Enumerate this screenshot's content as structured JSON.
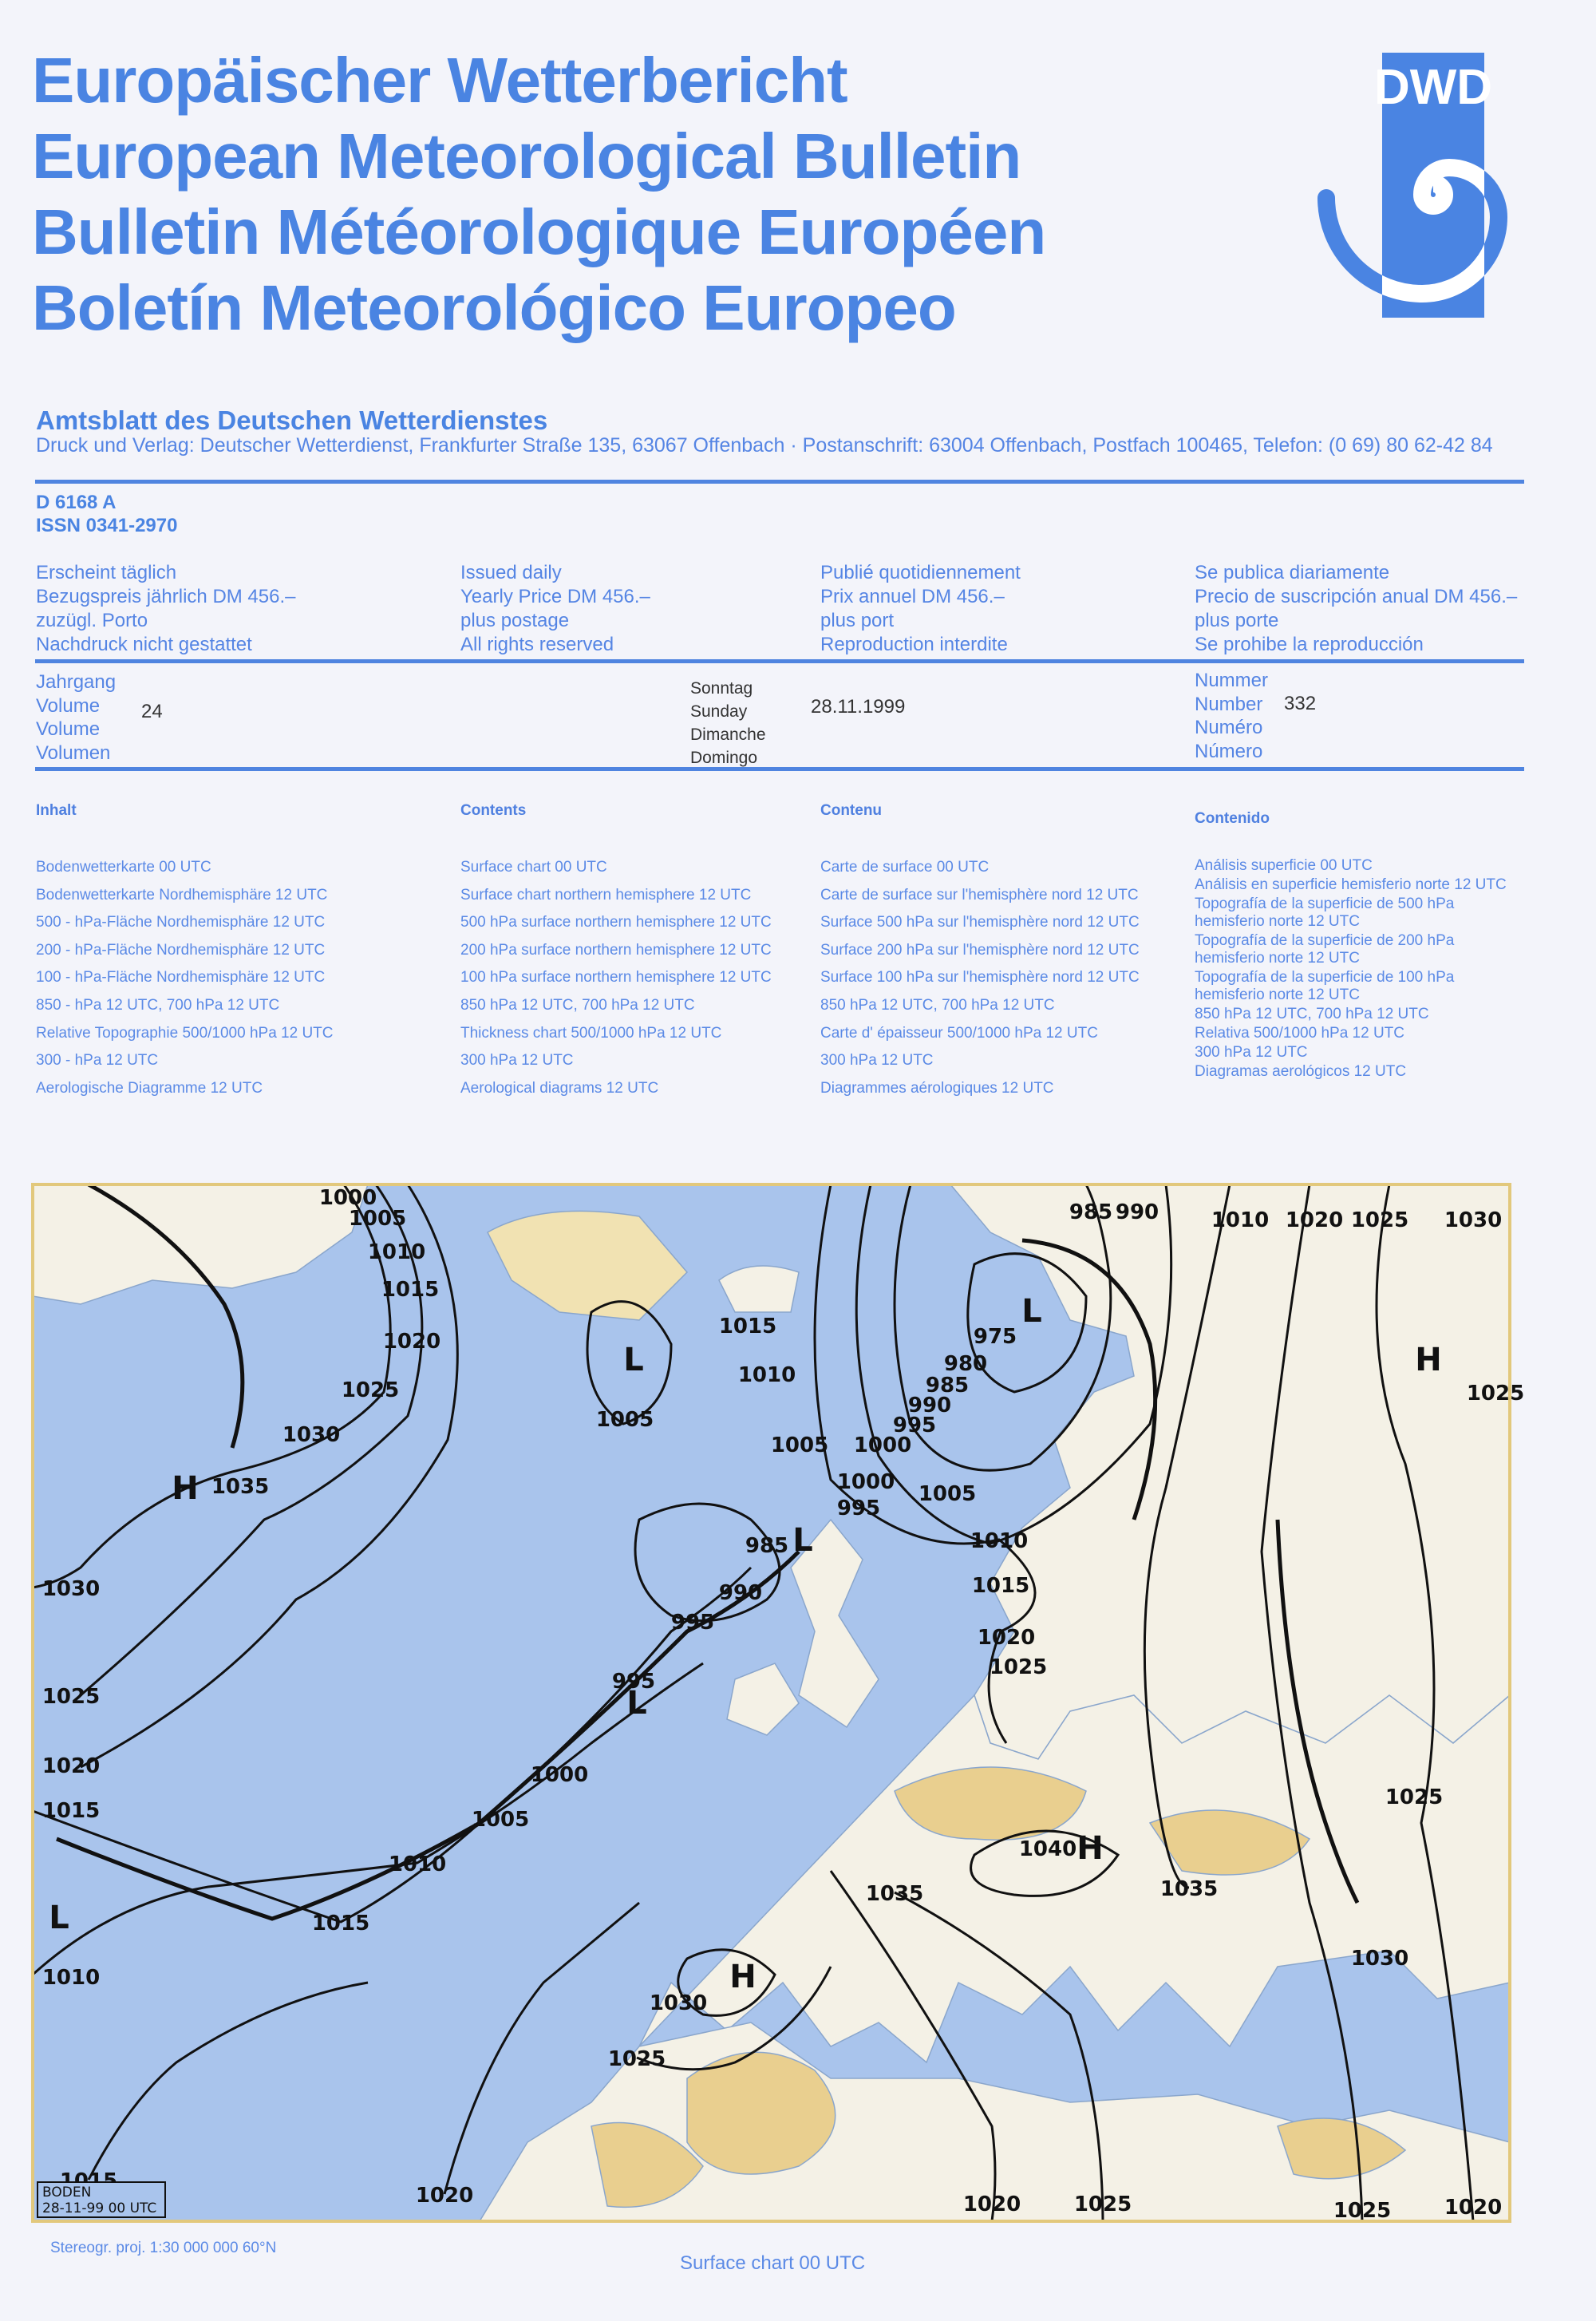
{
  "titles": [
    "Europäischer Wetterbericht",
    "European Meteorological Bulletin",
    "Bulletin Météorologique Européen",
    "Boletín Meteorológico Europeo"
  ],
  "logo": {
    "text": "DWD",
    "color": "#4a84e2"
  },
  "publisher": {
    "name": "Amtsblatt des Deutschen Wetterdienstes",
    "address": "Druck und Verlag: Deutscher Wetterdienst, Frankfurter Straße 135, 63067 Offenbach · Postanschrift: 63004 Offenbach, Postfach 100465, Telefon: (0 69) 80 62-42 84"
  },
  "ids": {
    "d_number": "D 6168 A",
    "issn": "ISSN 0341-2970"
  },
  "subscription": [
    [
      "Erscheint täglich",
      "Bezugspreis jährlich DM 456.–",
      "zuzügl. Porto",
      "Nachdruck nicht gestattet"
    ],
    [
      "Issued daily",
      "Yearly Price DM 456.–",
      "plus postage",
      "All rights reserved"
    ],
    [
      "Publié quotidiennement",
      "Prix annuel DM 456.–",
      "plus port",
      "Reproduction interdite"
    ],
    [
      "Se publica diariamente",
      "Precio de suscripción anual DM 456.–",
      "plus porte",
      "Se prohibe la reproducción"
    ]
  ],
  "issue": {
    "volume_labels": [
      "Jahrgang",
      "Volume",
      "Volume",
      "Volumen"
    ],
    "volume": "24",
    "day_labels": [
      "Sonntag",
      "Sunday",
      "Dimanche",
      "Domingo"
    ],
    "date": "28.11.1999",
    "number_labels": [
      "Nummer",
      "Number",
      "Numéro",
      "Número"
    ],
    "number": "332"
  },
  "contents": [
    {
      "heading": "Inhalt",
      "items": [
        "Bodenwetterkarte 00 UTC",
        "Bodenwetterkarte Nordhemisphäre 12 UTC",
        "500 - hPa-Fläche Nordhemisphäre 12 UTC",
        "200 - hPa-Fläche Nordhemisphäre 12 UTC",
        "100 - hPa-Fläche Nordhemisphäre 12 UTC",
        "850 - hPa 12 UTC, 700 hPa 12 UTC",
        "Relative Topographie 500/1000 hPa 12 UTC",
        "300 - hPa 12 UTC",
        "Aerologische Diagramme 12 UTC"
      ]
    },
    {
      "heading": "Contents",
      "items": [
        "Surface chart 00 UTC",
        "Surface chart northern hemisphere 12 UTC",
        "500 hPa surface northern hemisphere 12 UTC",
        "200 hPa surface northern hemisphere 12 UTC",
        "100 hPa surface northern hemisphere 12 UTC",
        "850 hPa 12 UTC, 700 hPa 12 UTC",
        "Thickness chart 500/1000 hPa 12 UTC",
        "300 hPa 12 UTC",
        "Aerological diagrams 12 UTC"
      ]
    },
    {
      "heading": "Contenu",
      "items": [
        "Carte de surface 00 UTC",
        "Carte de surface sur l'hemisphère nord 12 UTC",
        "Surface 500 hPa sur l'hemisphère nord 12 UTC",
        "Surface 200 hPa sur l'hemisphère nord 12 UTC",
        "Surface 100 hPa sur l'hemisphère nord 12 UTC",
        "850 hPa 12 UTC, 700 hPa 12 UTC",
        "Carte d' épaisseur 500/1000 hPa 12 UTC",
        "300 hPa 12 UTC",
        "Diagrammes aérologiques 12 UTC"
      ]
    },
    {
      "heading": "Contenido",
      "items": [
        "Análisis superficie 00 UTC",
        "Análisis en superficie hemisferio norte 12 UTC",
        "Topografía de la superficie de 500 hPa hemisferio norte 12 UTC",
        "Topografía de la superficie de 200 hPa hemisferio norte 12 UTC",
        "Topografía de la superficie de 100 hPa hemisferio norte 12 UTC",
        "850 hPa 12 UTC, 700 hPa 12 UTC",
        "Relativa 500/1000 hPa 12 UTC",
        "300 hPa 12 UTC",
        "Diagramas aerológicos 12 UTC"
      ]
    }
  ],
  "map": {
    "colors": {
      "sea": "#a9c4ec",
      "land": "#f4f1e6",
      "high_ground": "#e9cf8f",
      "isobar": "#111111"
    },
    "stamp": {
      "station": "BODEN",
      "datetime": "28-11-99 00 UTC"
    },
    "isobar_labels": [
      "1000",
      "1005",
      "1010",
      "1015",
      "1020",
      "1025",
      "1030",
      "1035",
      "1030",
      "1025",
      "1020",
      "1015",
      "1010",
      "1015",
      "1010",
      "1005",
      "1000",
      "995",
      "995",
      "990",
      "985",
      "1000",
      "995",
      "1005",
      "1000",
      "1010",
      "1015",
      "1005",
      "975",
      "980",
      "985",
      "990",
      "995",
      "985",
      "990",
      "1010",
      "1020",
      "1025",
      "1030",
      "1025",
      "1005",
      "1010",
      "1015",
      "1020",
      "1025",
      "1040",
      "1035",
      "1035",
      "1030",
      "1025",
      "1020",
      "1015",
      "1020",
      "1025",
      "1025",
      "1020",
      "1030",
      "1025"
    ],
    "pressure_centres": [
      "H",
      "L",
      "L",
      "L",
      "L",
      "L",
      "H",
      "H",
      "H"
    ]
  },
  "footer": {
    "projection": "Stereogr. proj. 1:30 000 000    60°N",
    "caption": "Surface chart 00 UTC"
  }
}
